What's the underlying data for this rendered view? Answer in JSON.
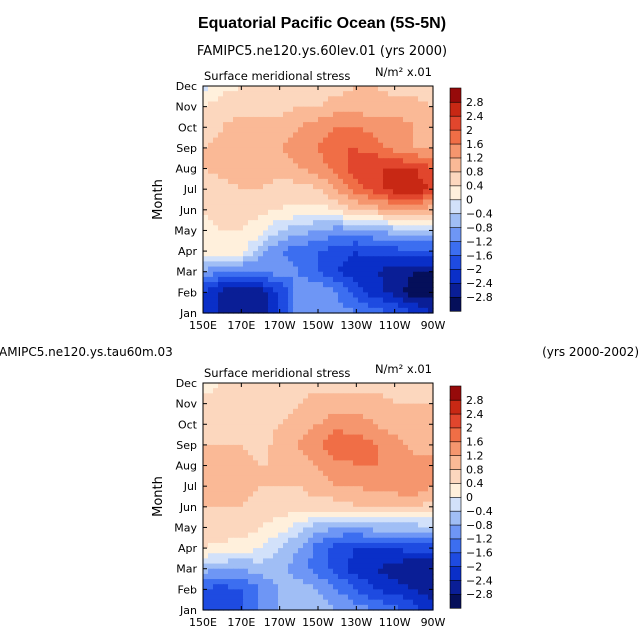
{
  "title": "Equatorial Pacific Ocean (5S-5N)",
  "subtitle_top": "FAMIPC5.ne120.ys.60lev.01  (yrs 2000)",
  "subtitle_bottom_left": "AMIPC5.ne120.ys.tau60m.03",
  "subtitle_bottom_right": "(yrs 2000-2002)",
  "chart_data": [
    {
      "type": "heatmap",
      "name": "top",
      "title": "Surface meridional stress",
      "units": "N/m² x.01",
      "xlabel": "",
      "ylabel": "Month",
      "x_ticks": [
        "150E",
        "170E",
        "170W",
        "150W",
        "130W",
        "110W",
        "90W"
      ],
      "y_ticks": [
        "Jan",
        "Feb",
        "Mar",
        "Apr",
        "May",
        "Jun",
        "Jul",
        "Aug",
        "Sep",
        "Oct",
        "Nov",
        "Dec"
      ],
      "x_range": [
        150,
        270
      ],
      "colorbar_labels": [
        "2.8",
        "2.4",
        "2",
        "1.6",
        "1.2",
        "0.8",
        "0.4",
        "0",
        "−0.4",
        "−0.8",
        "−1.2",
        "−1.6",
        "−2",
        "−2.4",
        "−2.8"
      ],
      "values": [
        [
          -2.0,
          -2.6,
          -2.6,
          -2.6,
          -2.0,
          -1.0,
          -0.8,
          -1.0,
          -1.2,
          -1.4,
          -1.6,
          -2.0,
          -2.4
        ],
        [
          -2.0,
          -2.6,
          -2.8,
          -2.6,
          -2.0,
          -1.0,
          -0.8,
          -1.2,
          -1.8,
          -2.2,
          -2.6,
          -3.0,
          -3.0
        ],
        [
          -0.8,
          -1.2,
          -1.4,
          -1.2,
          -1.0,
          -1.2,
          -1.6,
          -2.0,
          -2.2,
          -2.4,
          -2.6,
          -2.8,
          -2.8
        ],
        [
          0.2,
          0.2,
          0.2,
          -0.6,
          -1.2,
          -1.4,
          -1.6,
          -1.8,
          -2.0,
          -1.8,
          -1.8,
          -1.6,
          -1.6
        ],
        [
          0.3,
          0.4,
          0.4,
          0.2,
          -0.4,
          -0.6,
          -0.8,
          -1.0,
          -1.0,
          -0.8,
          -0.6,
          -0.6,
          -0.6
        ],
        [
          0.4,
          0.6,
          0.6,
          0.5,
          0.4,
          0.3,
          0.2,
          0.5,
          0.8,
          1.0,
          1.2,
          1.2,
          1.0
        ],
        [
          0.6,
          0.7,
          0.8,
          0.8,
          0.6,
          0.6,
          0.8,
          1.2,
          1.8,
          2.2,
          2.6,
          2.8,
          2.2
        ],
        [
          0.8,
          0.9,
          1.0,
          1.0,
          1.0,
          1.2,
          1.4,
          1.8,
          2.2,
          2.4,
          2.4,
          2.4,
          2.0
        ],
        [
          0.8,
          0.9,
          1.2,
          1.2,
          1.2,
          1.4,
          1.6,
          2.0,
          2.0,
          1.8,
          1.4,
          1.2,
          1.2
        ],
        [
          0.6,
          0.8,
          1.0,
          1.0,
          1.0,
          1.2,
          1.4,
          1.6,
          1.6,
          1.4,
          1.4,
          1.2,
          1.0
        ],
        [
          0.4,
          0.6,
          0.6,
          0.6,
          0.6,
          0.8,
          0.8,
          1.0,
          1.0,
          1.0,
          1.0,
          1.0,
          0.8
        ],
        [
          -0.2,
          0.3,
          0.4,
          0.4,
          0.4,
          0.5,
          0.6,
          0.6,
          0.8,
          0.8,
          0.6,
          0.6,
          0.4
        ]
      ]
    },
    {
      "type": "heatmap",
      "name": "bottom",
      "title": "Surface meridional stress",
      "units": "N/m² x.01",
      "xlabel": "",
      "ylabel": "Month",
      "x_ticks": [
        "150E",
        "170E",
        "170W",
        "150W",
        "130W",
        "110W",
        "90W"
      ],
      "y_ticks": [
        "Jan",
        "Feb",
        "Mar",
        "Apr",
        "May",
        "Jun",
        "Jul",
        "Aug",
        "Sep",
        "Oct",
        "Nov",
        "Dec"
      ],
      "x_range": [
        150,
        270
      ],
      "colorbar_labels": [
        "2.8",
        "2.4",
        "2",
        "1.6",
        "1.2",
        "0.8",
        "0.4",
        "0",
        "−0.4",
        "−0.8",
        "−1.2",
        "−1.6",
        "−2",
        "−2.4",
        "−2.8"
      ],
      "values": [
        [
          -1.8,
          -1.8,
          -1.6,
          -1.2,
          -0.8,
          -0.6,
          -0.6,
          -0.8,
          -1.0,
          -1.2,
          -1.4,
          -1.8,
          -2.2
        ],
        [
          -1.6,
          -1.8,
          -1.6,
          -1.2,
          -0.8,
          -0.6,
          -0.8,
          -1.2,
          -1.6,
          -2.0,
          -2.2,
          -2.4,
          -2.6
        ],
        [
          -0.6,
          -0.8,
          -0.8,
          -0.6,
          -0.6,
          -1.0,
          -1.4,
          -1.8,
          -2.2,
          -2.4,
          -2.6,
          -2.8,
          -2.8
        ],
        [
          0.4,
          0.3,
          0.2,
          0.0,
          -0.4,
          -0.8,
          -1.4,
          -1.8,
          -2.0,
          -2.0,
          -2.0,
          -1.8,
          -1.8
        ],
        [
          0.6,
          0.6,
          0.6,
          0.4,
          0.2,
          -0.2,
          -0.6,
          -0.8,
          -0.8,
          -0.6,
          -0.6,
          -0.6,
          -0.4
        ],
        [
          0.8,
          0.8,
          0.8,
          0.6,
          0.6,
          0.6,
          0.6,
          0.6,
          0.8,
          0.8,
          0.8,
          0.8,
          0.6
        ],
        [
          0.8,
          0.8,
          1.0,
          0.8,
          0.8,
          0.8,
          1.0,
          1.2,
          1.2,
          1.4,
          1.4,
          1.6,
          1.2
        ],
        [
          0.8,
          0.8,
          1.0,
          0.8,
          0.8,
          1.0,
          1.2,
          1.4,
          1.6,
          1.6,
          1.6,
          1.4,
          1.2
        ],
        [
          0.8,
          0.8,
          0.8,
          0.6,
          1.0,
          1.2,
          1.6,
          2.0,
          1.8,
          1.6,
          1.4,
          1.0,
          1.2
        ],
        [
          0.6,
          0.6,
          0.6,
          0.6,
          0.8,
          1.0,
          1.2,
          1.4,
          1.4,
          1.2,
          1.0,
          0.8,
          1.0
        ],
        [
          0.6,
          0.6,
          0.6,
          0.6,
          0.6,
          0.8,
          1.0,
          1.0,
          1.0,
          1.0,
          0.8,
          0.8,
          0.8
        ],
        [
          0.2,
          0.4,
          0.5,
          0.6,
          0.6,
          0.6,
          0.6,
          0.6,
          0.6,
          0.6,
          0.6,
          0.6,
          0.6
        ]
      ]
    }
  ],
  "colors": {
    "bins": [
      "#050f5a",
      "#0a1e96",
      "#0a2fc8",
      "#1e4be1",
      "#3c6ef0",
      "#6e96f5",
      "#a0bef5",
      "#d2e1fa",
      "#fff0dc",
      "#fcd7be",
      "#fab996",
      "#f5966e",
      "#f06e46",
      "#e1462d",
      "#c82814",
      "#960a0a"
    ]
  }
}
